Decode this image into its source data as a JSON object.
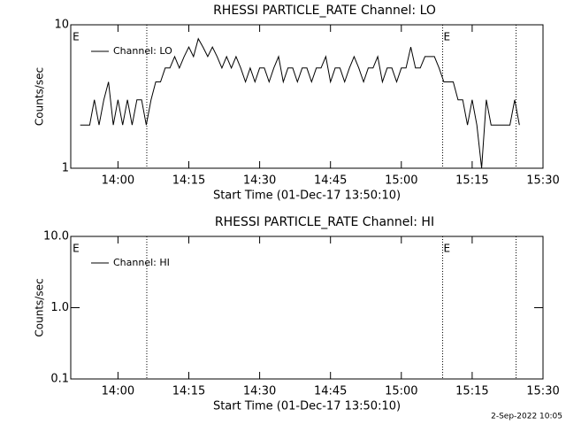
{
  "chart_data": [
    {
      "type": "line",
      "title": "RHESSI PARTICLE_RATE Channel: LO",
      "x_label": "Start Time (01-Dec-17 13:50:10)",
      "y_label": "Counts/sec",
      "log_y": true,
      "legend": "upper left",
      "xlim": [
        830,
        930
      ],
      "xticks": [
        {
          "value": 840,
          "label": "14:00"
        },
        {
          "value": 855,
          "label": "14:15"
        },
        {
          "value": 870,
          "label": "14:30"
        },
        {
          "value": 885,
          "label": "14:45"
        },
        {
          "value": 900,
          "label": "15:00"
        },
        {
          "value": 915,
          "label": "15:15"
        },
        {
          "value": 930,
          "label": "15:30"
        }
      ],
      "ylim": [
        1,
        10
      ],
      "yticks": [
        1,
        10
      ],
      "markers": [
        846.1,
        908.75,
        924.3
      ],
      "annotations": [
        {
          "x": 830.2,
          "text": "E"
        },
        {
          "x": 908.75,
          "text": "E"
        }
      ],
      "series": [
        {
          "name": "Channel: LO",
          "color": "#000000",
          "x": [
            832,
            833,
            834,
            835,
            836,
            837,
            838,
            839,
            840,
            841,
            842,
            843,
            844,
            845,
            846,
            847,
            848,
            849,
            850,
            851,
            852,
            853,
            854,
            855,
            856,
            857,
            858,
            859,
            860,
            861,
            862,
            863,
            864,
            865,
            866,
            867,
            868,
            869,
            870,
            871,
            872,
            873,
            874,
            875,
            876,
            877,
            878,
            879,
            880,
            881,
            882,
            883,
            884,
            885,
            886,
            887,
            888,
            889,
            890,
            891,
            892,
            893,
            894,
            895,
            896,
            897,
            898,
            899,
            900,
            901,
            902,
            903,
            904,
            905,
            906,
            907,
            908,
            909,
            910,
            911,
            912,
            913,
            914,
            915,
            916,
            917,
            918,
            919,
            920,
            921,
            922,
            923,
            924,
            925
          ],
          "values": [
            2,
            2,
            2,
            3,
            2,
            3,
            4,
            2,
            3,
            2,
            3,
            2,
            3,
            3,
            2,
            3,
            4,
            4,
            5,
            5,
            6,
            5,
            6,
            7,
            6,
            8,
            7,
            6,
            7,
            6,
            5,
            6,
            5,
            6,
            5,
            4,
            5,
            4,
            5,
            5,
            4,
            5,
            6,
            4,
            5,
            5,
            4,
            5,
            5,
            4,
            5,
            5,
            6,
            4,
            5,
            5,
            4,
            5,
            6,
            5,
            4,
            5,
            5,
            6,
            4,
            5,
            5,
            4,
            5,
            5,
            7,
            5,
            5,
            6,
            6,
            6,
            5,
            4,
            4,
            4,
            3,
            3,
            2,
            3,
            2,
            1,
            3,
            2,
            2,
            2,
            2,
            2,
            3,
            2
          ]
        }
      ]
    },
    {
      "type": "line",
      "title": "RHESSI PARTICLE_RATE Channel: HI",
      "x_label": "Start Time (01-Dec-17 13:50:10)",
      "y_label": "Counts/sec",
      "log_y": true,
      "legend": "upper left",
      "xlim": [
        830,
        930
      ],
      "xticks": [
        {
          "value": 840,
          "label": "14:00"
        },
        {
          "value": 855,
          "label": "14:15"
        },
        {
          "value": 870,
          "label": "14:30"
        },
        {
          "value": 885,
          "label": "14:45"
        },
        {
          "value": 900,
          "label": "15:00"
        },
        {
          "value": 915,
          "label": "15:15"
        },
        {
          "value": 930,
          "label": "15:30"
        }
      ],
      "ylim": [
        0.1,
        10
      ],
      "yticks": [
        0.1,
        {
          "value": 1,
          "label": "1.0"
        },
        {
          "value": 10,
          "label": "10.0"
        }
      ],
      "markers": [
        846.1,
        908.75,
        924.3
      ],
      "annotations": [
        {
          "x": 830.2,
          "text": "E"
        },
        {
          "x": 908.75,
          "text": "E"
        }
      ],
      "series": [
        {
          "name": "Channel: HI",
          "color": "#000000",
          "x": [],
          "values": []
        }
      ]
    }
  ],
  "footer": "2-Sep-2022 10:05"
}
